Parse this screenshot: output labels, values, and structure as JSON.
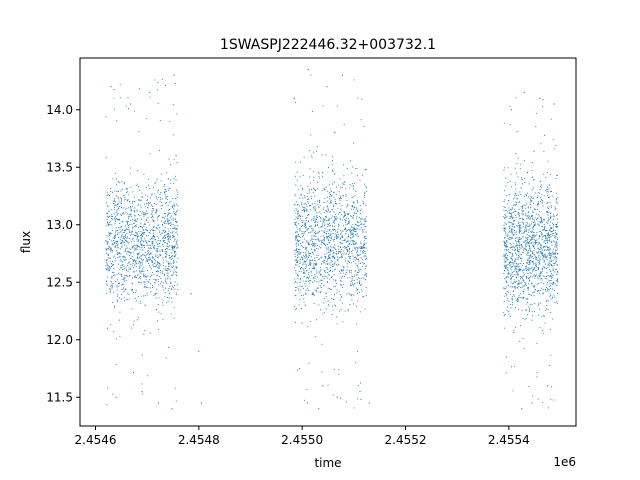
{
  "chart_data": {
    "type": "scatter",
    "title": "1SWASPJ222446.32+003732.1",
    "xlabel": "time",
    "ylabel": "flux",
    "x_offset_label": "1e6",
    "xlim": [
      2454570,
      2455530
    ],
    "ylim": [
      11.25,
      14.45
    ],
    "x_ticks": [
      2454600,
      2454800,
      2455000,
      2455200,
      2455400
    ],
    "x_tick_labels": [
      "2.4546",
      "2.4548",
      "2.4550",
      "2.4552",
      "2.4554"
    ],
    "y_ticks": [
      11.5,
      12.0,
      12.5,
      13.0,
      13.5,
      14.0
    ],
    "y_tick_labels": [
      "11.5",
      "12.0",
      "12.5",
      "13.0",
      "13.5",
      "14.0"
    ],
    "grid": false,
    "legend": "none",
    "marker_color": "#1f77b4",
    "marker_size_note": "tiny points",
    "series": [
      {
        "observing_seasons": [
          {
            "x_start": 2454620,
            "x_end": 2454760,
            "median_flux": 12.85,
            "spread_core": [
              12.35,
              13.3
            ],
            "extremes": [
              11.4,
              14.3
            ]
          },
          {
            "x_start": 2454985,
            "x_end": 2455125,
            "median_flux": 12.85,
            "spread_core": [
              12.3,
              13.3
            ],
            "extremes": [
              11.4,
              14.35
            ]
          },
          {
            "x_start": 2455390,
            "x_end": 2455495,
            "median_flux": 12.8,
            "spread_core": [
              12.3,
              13.3
            ],
            "extremes": [
              11.4,
              14.15
            ]
          }
        ],
        "points": [
          [
            2454623,
            12.1
          ],
          [
            2454624,
            12.85
          ],
          [
            2454626,
            12.6
          ],
          [
            2454628,
            13.0
          ],
          [
            2454632,
            12.45
          ],
          [
            2454637,
            12.9
          ],
          [
            2454641,
            13.25
          ],
          [
            2454646,
            12.75
          ],
          [
            2454651,
            12.55
          ],
          [
            2454656,
            12.95
          ],
          [
            2454661,
            12.35
          ],
          [
            2454666,
            13.2
          ],
          [
            2454671,
            12.8
          ],
          [
            2454676,
            12.65
          ],
          [
            2454681,
            13.05
          ],
          [
            2454686,
            12.5
          ],
          [
            2454691,
            12.9
          ],
          [
            2454696,
            12.3
          ],
          [
            2454701,
            13.15
          ],
          [
            2454706,
            12.7
          ],
          [
            2454711,
            12.85
          ],
          [
            2454716,
            12.4
          ],
          [
            2454721,
            13.3
          ],
          [
            2454726,
            12.6
          ],
          [
            2454731,
            12.95
          ],
          [
            2454736,
            12.75
          ],
          [
            2454741,
            13.4
          ],
          [
            2454746,
            12.5
          ],
          [
            2454751,
            12.9
          ],
          [
            2454756,
            13.6
          ],
          [
            2454759,
            12.8
          ],
          [
            2454630,
            14.2
          ],
          [
            2454668,
            14.05
          ],
          [
            2454705,
            14.15
          ],
          [
            2454752,
            14.3
          ],
          [
            2454640,
            11.5
          ],
          [
            2454690,
            11.55
          ],
          [
            2454722,
            11.45
          ],
          [
            2454748,
            11.4
          ],
          [
            2454785,
            12.4
          ],
          [
            2454800,
            11.9
          ],
          [
            2454805,
            11.45
          ],
          [
            2454988,
            12.9
          ],
          [
            2454992,
            13.1
          ],
          [
            2454996,
            12.5
          ],
          [
            2455001,
            12.85
          ],
          [
            2455006,
            12.3
          ],
          [
            2455011,
            13.2
          ],
          [
            2455016,
            12.65
          ],
          [
            2455021,
            12.95
          ],
          [
            2455026,
            13.3
          ],
          [
            2455031,
            12.45
          ],
          [
            2455036,
            12.8
          ],
          [
            2455041,
            13.05
          ],
          [
            2455046,
            12.55
          ],
          [
            2455051,
            12.9
          ],
          [
            2455056,
            13.25
          ],
          [
            2455061,
            12.35
          ],
          [
            2455066,
            12.75
          ],
          [
            2455071,
            13.0
          ],
          [
            2455076,
            12.6
          ],
          [
            2455081,
            13.35
          ],
          [
            2455086,
            12.85
          ],
          [
            2455091,
            12.4
          ],
          [
            2455096,
            12.95
          ],
          [
            2455101,
            13.15
          ],
          [
            2455106,
            12.7
          ],
          [
            2455111,
            12.5
          ],
          [
            2455116,
            13.05
          ],
          [
            2455121,
            12.8
          ],
          [
            2454985,
            14.1
          ],
          [
            2455012,
            14.35
          ],
          [
            2455048,
            14.2
          ],
          [
            2455078,
            14.3
          ],
          [
            2455010,
            11.45
          ],
          [
            2455032,
            11.4
          ],
          [
            2455068,
            11.5
          ],
          [
            2455112,
            11.55
          ],
          [
            2455130,
            11.45
          ],
          [
            2455040,
            11.6
          ],
          [
            2454995,
            11.75
          ],
          [
            2455392,
            12.85
          ],
          [
            2455396,
            12.5
          ],
          [
            2455401,
            13.1
          ],
          [
            2455406,
            12.7
          ],
          [
            2455411,
            12.95
          ],
          [
            2455416,
            12.35
          ],
          [
            2455421,
            13.2
          ],
          [
            2455426,
            12.6
          ],
          [
            2455431,
            12.85
          ],
          [
            2455436,
            12.45
          ],
          [
            2455441,
            13.05
          ],
          [
            2455446,
            12.75
          ],
          [
            2455451,
            12.55
          ],
          [
            2455456,
            13.25
          ],
          [
            2455461,
            12.8
          ],
          [
            2455466,
            12.4
          ],
          [
            2455471,
            12.95
          ],
          [
            2455476,
            12.65
          ],
          [
            2455481,
            13.1
          ],
          [
            2455486,
            12.5
          ],
          [
            2455491,
            12.9
          ],
          [
            2455494,
            12.75
          ],
          [
            2455405,
            14.0
          ],
          [
            2455430,
            14.15
          ],
          [
            2455460,
            14.1
          ],
          [
            2455488,
            14.05
          ],
          [
            2455425,
            11.4
          ],
          [
            2455445,
            11.45
          ],
          [
            2455475,
            11.6
          ],
          [
            2455395,
            11.85
          ]
        ]
      }
    ]
  }
}
